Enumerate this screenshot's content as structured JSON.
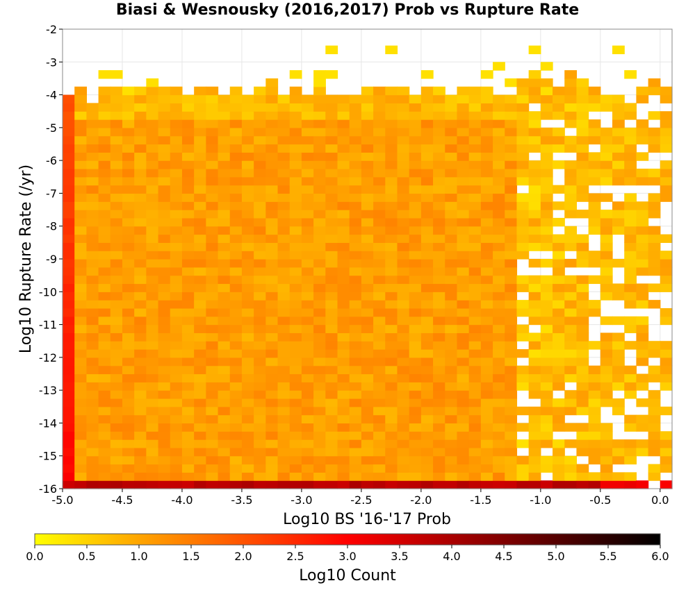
{
  "chart_data": {
    "type": "heatmap",
    "title": "Biasi & Wesnousky (2016,2017) Prob vs Rupture Rate",
    "xlabel": "Log10 BS '16-'17 Prob",
    "ylabel": "Log10 Rupture Rate (/yr)",
    "xlim": [
      -5.0,
      0.1
    ],
    "ylim": [
      -16,
      -2
    ],
    "x_ticks": [
      "-5.0",
      "-4.5",
      "-4.0",
      "-3.5",
      "-3.0",
      "-2.5",
      "-2.0",
      "-1.5",
      "-1.0",
      "-0.5",
      "0.0"
    ],
    "y_ticks": [
      "-2",
      "-3",
      "-4",
      "-5",
      "-6",
      "-7",
      "-8",
      "-9",
      "-10",
      "-11",
      "-12",
      "-13",
      "-14",
      "-15",
      "-16"
    ],
    "bin_width_x": 0.1,
    "bin_height_y": 0.25,
    "colorbar": {
      "label": "Log10 Count",
      "min": 0.0,
      "max": 6.0,
      "ticks": [
        "0.0",
        "0.5",
        "1.0",
        "1.5",
        "2.0",
        "2.5",
        "3.0",
        "3.5",
        "4.0",
        "4.5",
        "5.0",
        "5.5",
        "6.0"
      ],
      "colors": [
        "#ffff00",
        "#ffa500",
        "#ff0000",
        "#000000"
      ]
    },
    "regions": {
      "bottom_row_y": -16,
      "bottom_row_log_count": 3.8,
      "left_column_x": -5.0,
      "left_column_log_count_range": [
        2.0,
        3.0
      ],
      "bulk_log_count_range": [
        0.7,
        1.6
      ],
      "sparse_x_start": -1.2
    }
  }
}
